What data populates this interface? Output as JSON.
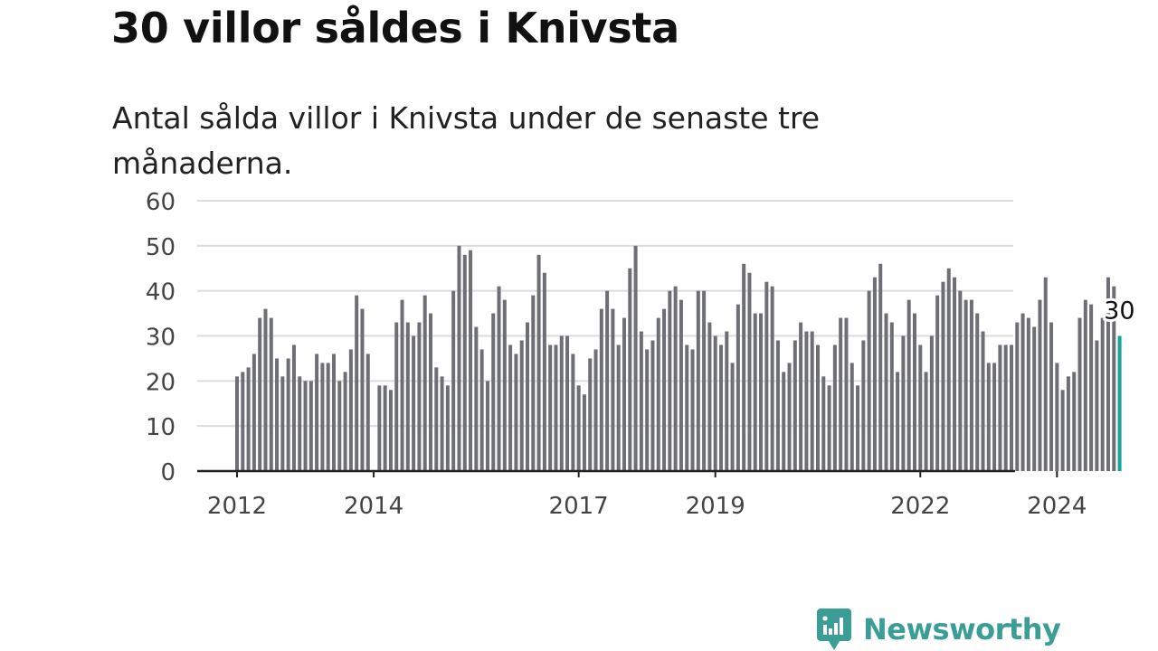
{
  "title": "30 villor såldes i Knivsta",
  "subtitle": "Antal sålda villor i Knivsta under de senaste tre månaderna.",
  "brand": {
    "name": "Newsworthy",
    "icon": "newsworthy-logo-icon",
    "color": "#3a9e96"
  },
  "colors": {
    "bar": "#6e6e76",
    "highlight": "#17a398",
    "grid": "#dcdcdc",
    "axis": "#222222"
  },
  "chart_data": {
    "type": "bar",
    "title": "30 villor såldes i Knivsta",
    "xlabel": "",
    "ylabel": "",
    "ylim": [
      0,
      60
    ],
    "yticks": [
      0,
      10,
      20,
      30,
      40,
      50,
      60
    ],
    "xticks": [
      "2012",
      "2014",
      "2017",
      "2019",
      "2022",
      "2024"
    ],
    "grid": true,
    "x_start": "2012-01",
    "frequency": "monthly",
    "values": [
      21,
      22,
      23,
      26,
      34,
      36,
      34,
      25,
      21,
      25,
      28,
      21,
      20,
      20,
      26,
      24,
      24,
      26,
      20,
      22,
      27,
      39,
      36,
      26,
      0,
      19,
      19,
      18,
      33,
      38,
      33,
      30,
      33,
      39,
      35,
      23,
      21,
      19,
      40,
      50,
      48,
      49,
      32,
      27,
      20,
      35,
      41,
      38,
      28,
      26,
      29,
      33,
      39,
      48,
      44,
      28,
      28,
      30,
      30,
      26,
      19,
      17,
      25,
      27,
      36,
      40,
      36,
      28,
      34,
      45,
      50,
      31,
      27,
      29,
      34,
      36,
      40,
      41,
      38,
      28,
      27,
      40,
      40,
      33,
      30,
      28,
      31,
      24,
      37,
      46,
      44,
      35,
      35,
      42,
      41,
      29,
      22,
      24,
      29,
      33,
      31,
      31,
      28,
      21,
      19,
      28,
      34,
      34,
      24,
      19,
      29,
      40,
      43,
      46,
      35,
      33,
      22,
      30,
      38,
      35,
      28,
      22,
      30,
      39,
      42,
      45,
      43,
      40,
      38,
      38,
      35,
      31,
      24,
      24,
      28,
      28,
      28,
      33,
      35,
      34,
      32,
      38,
      43,
      33,
      24,
      18,
      21,
      22,
      34,
      38,
      37,
      29,
      34,
      43,
      41,
      30
    ],
    "highlight": {
      "label": "30",
      "value": 30,
      "position": "last"
    }
  }
}
